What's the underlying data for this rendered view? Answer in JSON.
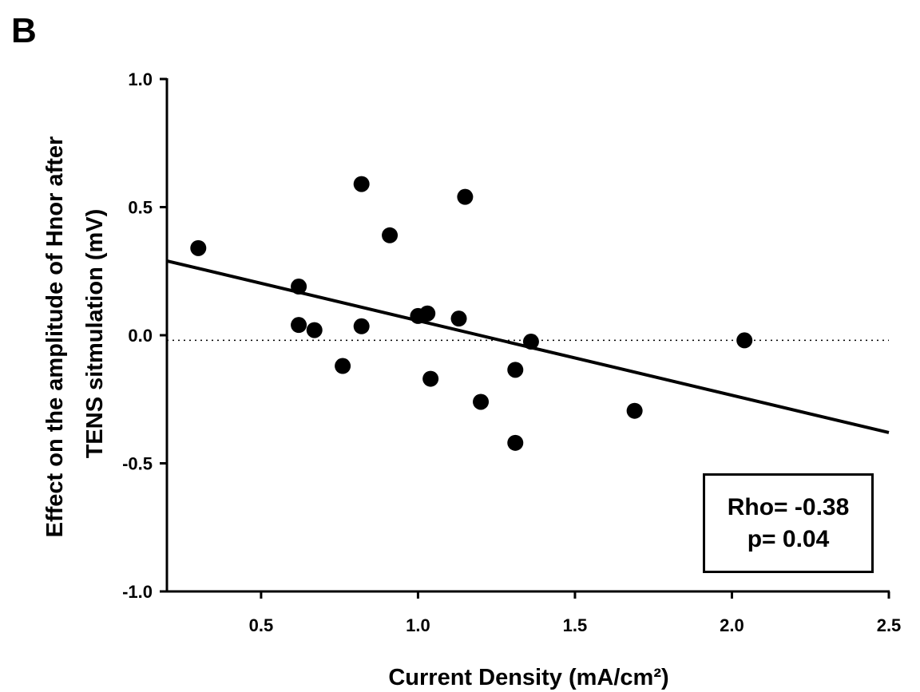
{
  "panel_label": "B",
  "chart_data": {
    "type": "scatter",
    "xlabel": "Current Density (mA/cm²)",
    "ylabel_lines": [
      "Effect on the amplitude of Hnor after",
      "TENS sitmulation (mV)"
    ],
    "xlim": [
      0.2,
      2.5
    ],
    "ylim": [
      -1.0,
      1.0
    ],
    "x_ticks": [
      0.5,
      1.0,
      1.5,
      2.0,
      2.5
    ],
    "x_tick_labels": [
      "0.5",
      "1.0",
      "1.5",
      "2.0",
      "2.5"
    ],
    "y_ticks": [
      -1.0,
      -0.5,
      0.0,
      0.5,
      1.0
    ],
    "y_tick_labels": [
      "-1.0",
      "-0.5",
      "0.0",
      "0.5",
      "1.0"
    ],
    "points": [
      {
        "x": 0.3,
        "y": 0.34
      },
      {
        "x": 0.62,
        "y": 0.19
      },
      {
        "x": 0.62,
        "y": 0.04
      },
      {
        "x": 0.67,
        "y": 0.02
      },
      {
        "x": 0.76,
        "y": -0.12
      },
      {
        "x": 0.82,
        "y": 0.59
      },
      {
        "x": 0.82,
        "y": 0.035
      },
      {
        "x": 0.91,
        "y": 0.39
      },
      {
        "x": 1.0,
        "y": 0.075
      },
      {
        "x": 1.03,
        "y": 0.085
      },
      {
        "x": 1.04,
        "y": -0.17
      },
      {
        "x": 1.13,
        "y": 0.065
      },
      {
        "x": 1.15,
        "y": 0.54
      },
      {
        "x": 1.2,
        "y": -0.26
      },
      {
        "x": 1.31,
        "y": -0.135
      },
      {
        "x": 1.31,
        "y": -0.42
      },
      {
        "x": 1.36,
        "y": -0.025
      },
      {
        "x": 1.69,
        "y": -0.295
      },
      {
        "x": 2.04,
        "y": -0.02
      }
    ],
    "regression_line": {
      "x": [
        0.2,
        2.5
      ],
      "y": [
        0.29,
        -0.38
      ]
    },
    "reference_line_y": -0.02,
    "annotation_lines": [
      "Rho= -0.38",
      "p= 0.04"
    ],
    "grid": false,
    "colors": {
      "points": "#000000",
      "line": "#000000",
      "reference": "#000000"
    }
  }
}
